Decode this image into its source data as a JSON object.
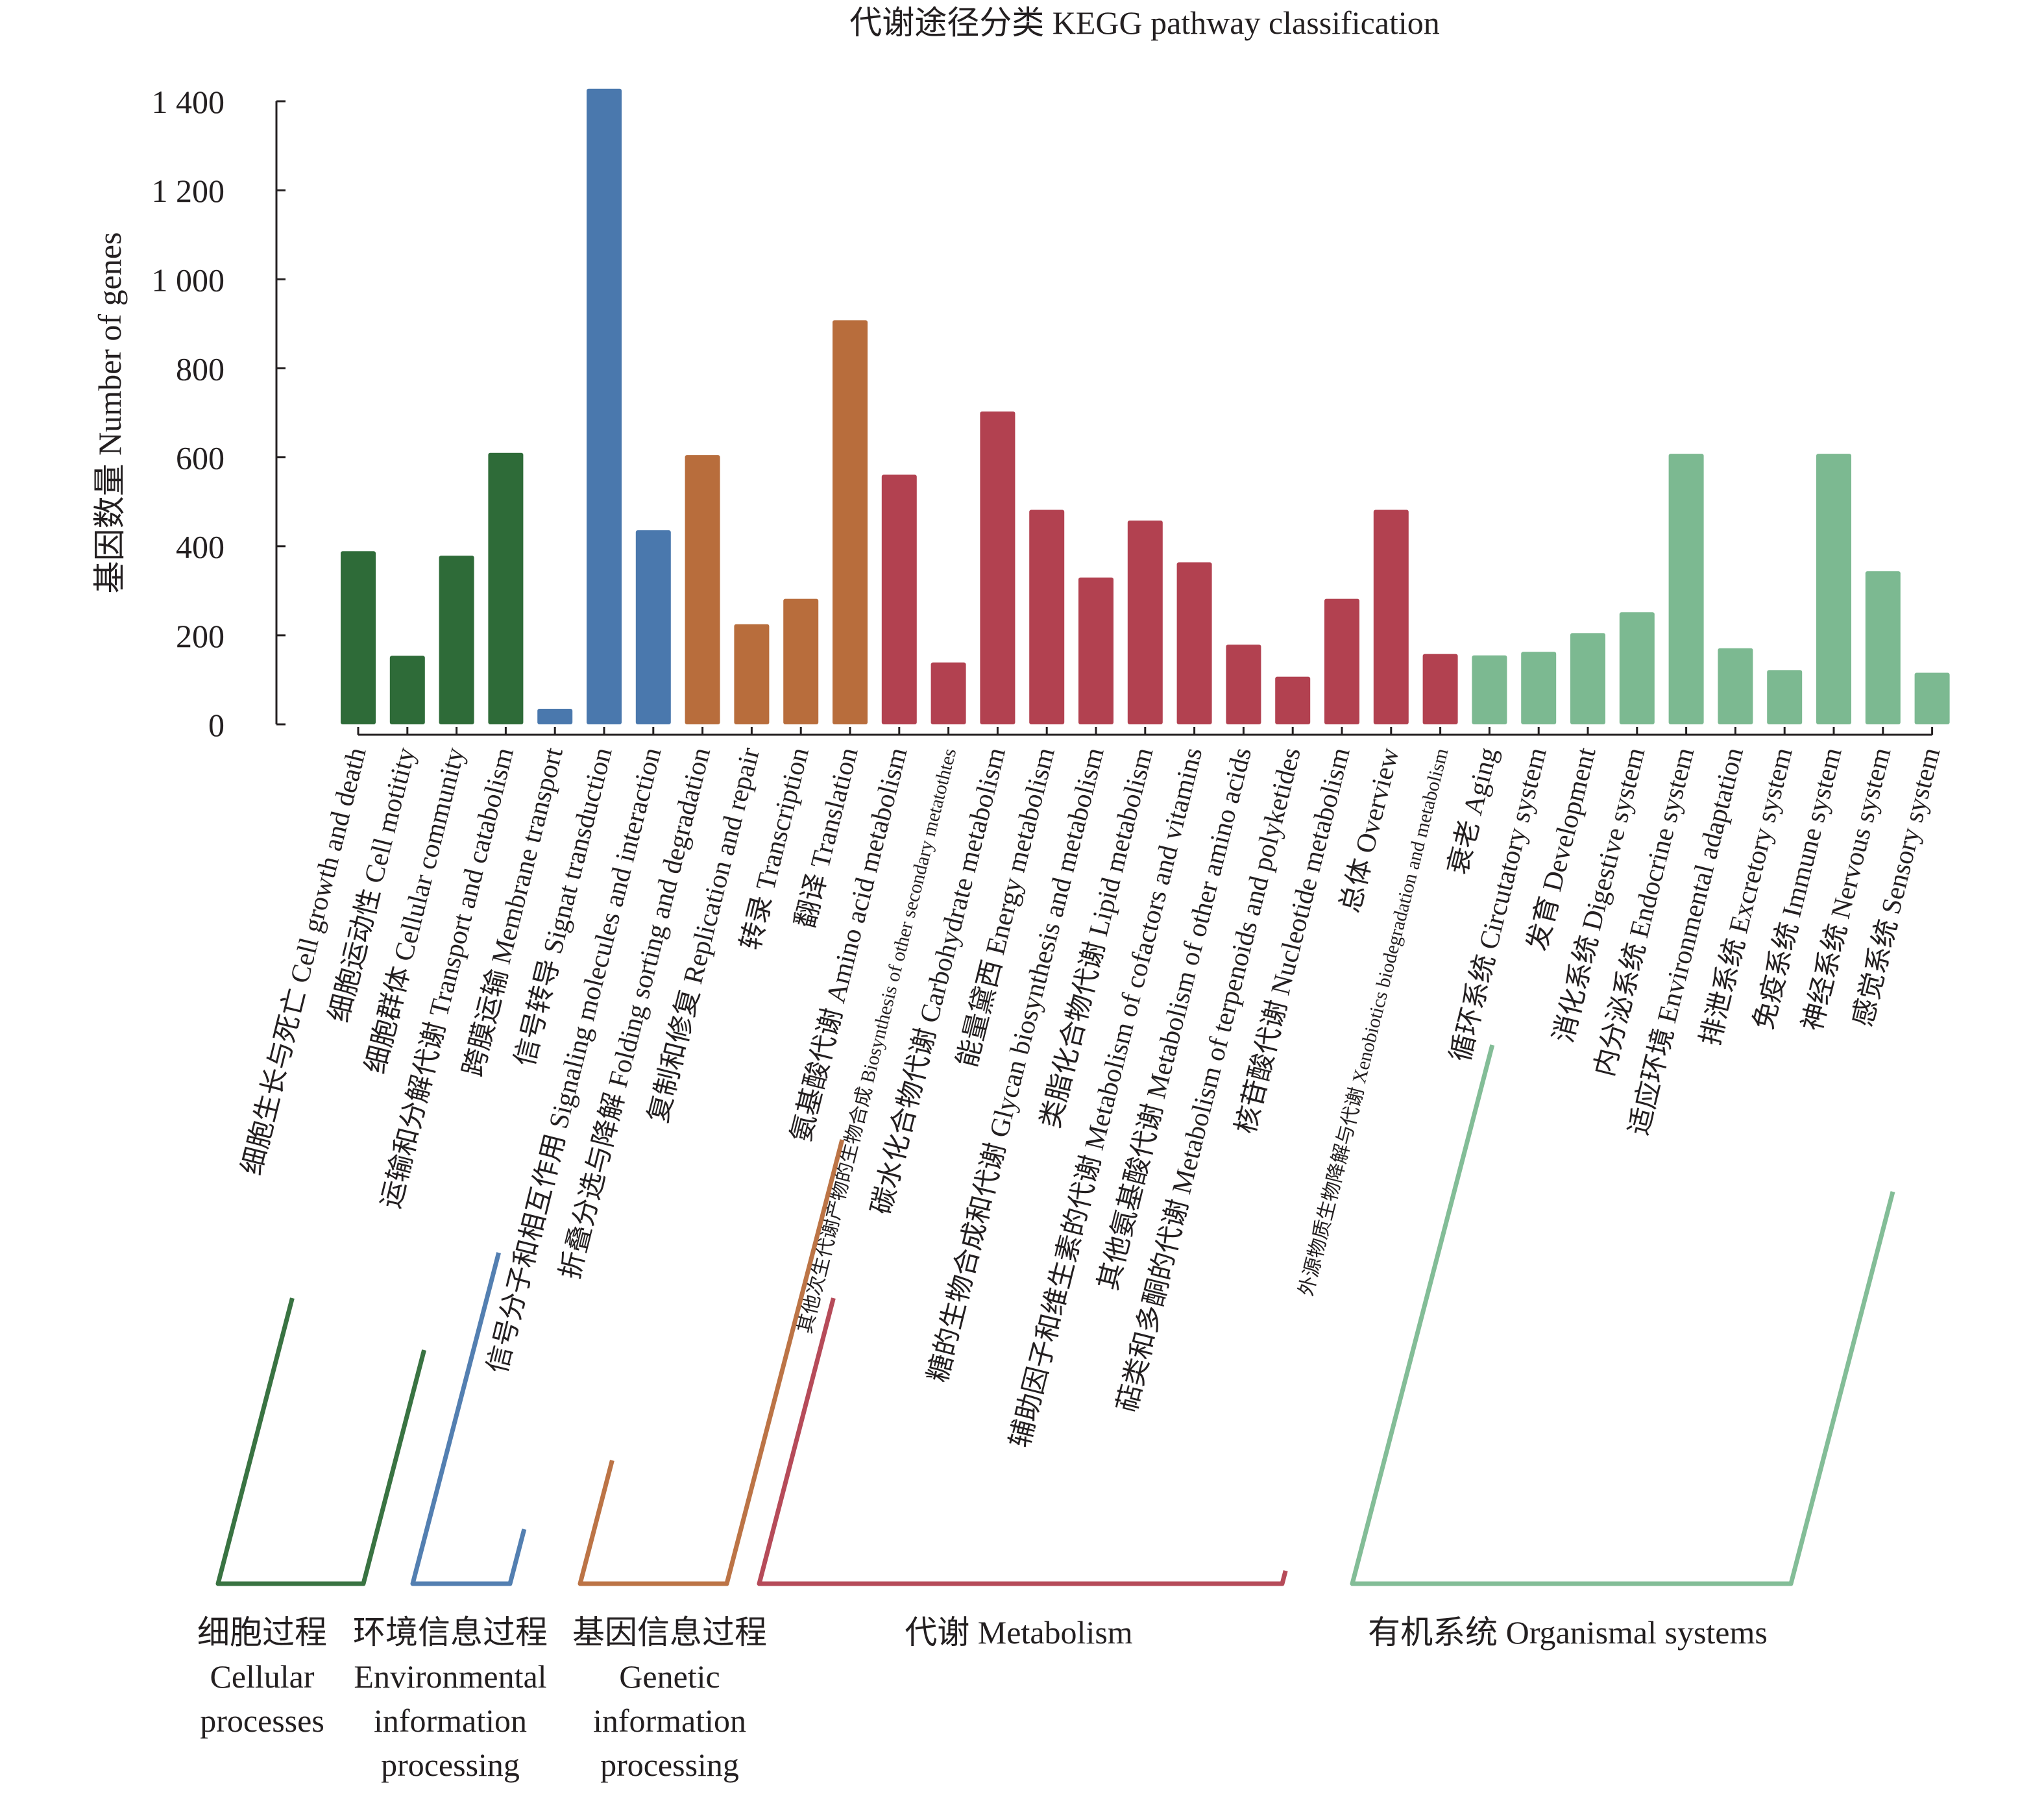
{
  "chart_data": {
    "type": "bar",
    "title": "代谢途径分类 KEGG pathway classification",
    "xlabel": "",
    "ylabel": "基因数量 Number of genes",
    "ylim": [
      0,
      1400
    ],
    "yticks": [
      0,
      200,
      400,
      600,
      800,
      1000,
      1200,
      1400
    ],
    "ytick_labels": [
      "0",
      "200",
      "400",
      "600",
      "800",
      "1 000",
      "1 200",
      "1 400"
    ],
    "grid": false,
    "legend": "none",
    "categories": [
      "细胞生长与死亡 Cell growth and death",
      "细胞运动性 Cell motitity",
      "细胞群体 Cellular community",
      "运输和分解代谢 Transport and catabolism",
      "跨膜运输 Membrane transport",
      "信号转导 Signat transduction",
      "信号分子和相互作用 Signaling molecules and interaction",
      "折叠分选与降解 Folding sorting and degradation",
      "复制和修复 Replication and repair",
      "转录 Transcription",
      "翻译 Translation",
      "氨基酸代谢 Amino acid metabolism",
      "其他次生代谢产物的生物合成 Biosynthesis of other secondary metatothtes",
      "碳水化合物代谢 Carbohydrate metabolism",
      "能量黛西 Energy metabolism",
      "糖的生物合成和代谢 Glycan biosynthesis and metabolism",
      "类脂化合物代谢 Lipid metabolism",
      "辅助因子和维生素的代谢 Metabolism of cofactors and vitamins",
      "其他氨基酸代谢 Metabolism of other amino acids",
      "萜类和多酮的代谢 Metabolism of terpenoids and polyketides",
      "核苷酸代谢 Nucleotide metabolism",
      "总体 Overview",
      "外源物质生物降解与代谢 Xenobiotics biodegradation and metabolism",
      "衰老 Aging",
      "循环系统 Circutatory system",
      "发育 Development",
      "消化系统 Digestive system",
      "内分泌系统 Endocrine system",
      "适应环境 Environmental adaptation",
      "排泄系统 Excretory system",
      "免疫系统 Immune system",
      "神经系统 Nervous system",
      "感觉系统 Sensory system"
    ],
    "values": [
      389,
      154,
      379,
      610,
      35,
      1428,
      436,
      605,
      225,
      282,
      908,
      561,
      139,
      703,
      482,
      330,
      458,
      364,
      179,
      107,
      282,
      482,
      158,
      155,
      163,
      205,
      252,
      608,
      171,
      122,
      608,
      344,
      116
    ],
    "small_label_indices": [
      12,
      22
    ],
    "groups": [
      {
        "name_cn": "细胞过程",
        "name_en_lines": [
          "Cellular",
          "processes"
        ],
        "start": 0,
        "end": 3,
        "color": "#2e6b38"
      },
      {
        "name_cn": "环境信息过程",
        "name_en_lines": [
          "Environmental",
          "information",
          "processing"
        ],
        "start": 4,
        "end": 6,
        "color": "#4a78ad"
      },
      {
        "name_cn": "基因信息过程",
        "name_en_lines": [
          "Genetic",
          "information",
          "processing"
        ],
        "start": 7,
        "end": 10,
        "color": "#b86d3c"
      },
      {
        "name_cn": "代谢 Metabolism",
        "name_en_lines": [],
        "start": 11,
        "end": 22,
        "color": "#b24150"
      },
      {
        "name_cn": "有机系统 Organismal systems",
        "name_en_lines": [],
        "start": 23,
        "end": 32,
        "color": "#7cb991"
      }
    ]
  }
}
